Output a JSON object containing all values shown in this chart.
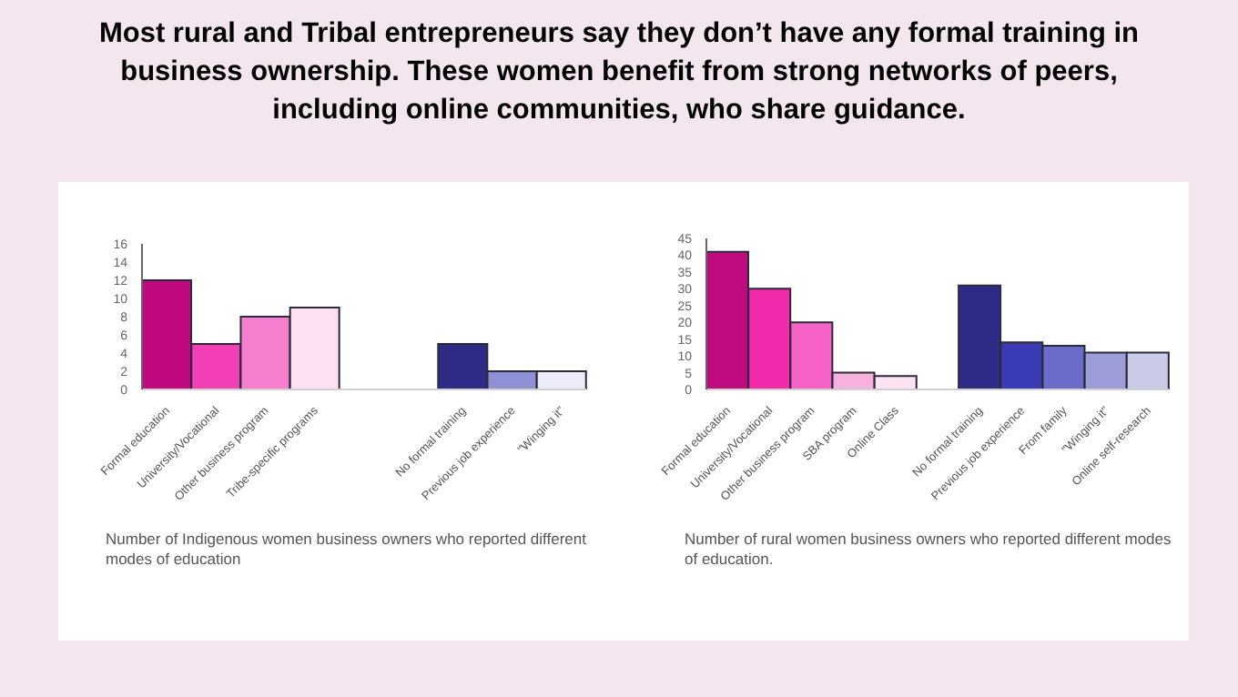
{
  "chart_data": [
    {
      "type": "bar",
      "title": "Most rural and Tribal entrepreneurs say they don’t have any formal training in business ownership. These women benefit from strong networks of peers, including online communities, who share guidance.",
      "categories": [
        "Formal education",
        "University/Vocational",
        "Other business program",
        "Tribe-specific programs",
        null,
        null,
        "No formal training",
        "Previous job experience",
        "\"Winging it\""
      ],
      "values": [
        12,
        5,
        8,
        9,
        null,
        null,
        5,
        2,
        2
      ],
      "colors": [
        "#c0087f",
        "#f23fb5",
        "#f77fcf",
        "#fde0f3",
        "#ffffff",
        "#ffffff",
        "#2e2c86",
        "#8f8fd6",
        "#ececf8"
      ],
      "ylim": [
        0,
        16
      ],
      "yticks": [
        0,
        2,
        4,
        6,
        8,
        10,
        12,
        14,
        16
      ],
      "annotations": [
        "Number of Indigenous women business owners who reported different modes of education"
      ]
    },
    {
      "type": "bar",
      "categories": [
        "Formal education",
        "University/Vocational",
        "Other business program",
        "SBA program",
        "Online Class",
        null,
        "No formal training",
        "Previous job experience",
        "From family",
        "\"Winging it\"",
        "Online self-research"
      ],
      "values": [
        41,
        30,
        20,
        5,
        4,
        null,
        31,
        14,
        13,
        11,
        11
      ],
      "colors": [
        "#bf0a80",
        "#f22aab",
        "#f762c6",
        "#f6b2dc",
        "#fce3f2",
        "#ffffff",
        "#2e2c86",
        "#3b3bb5",
        "#6b6bc9",
        "#9c9cd9",
        "#cacae9"
      ],
      "ylim": [
        0,
        45
      ],
      "yticks": [
        0,
        5,
        10,
        15,
        20,
        25,
        30,
        35,
        40,
        45
      ],
      "annotations": [
        "Number of rural women business owners who reported different modes of education."
      ]
    }
  ]
}
